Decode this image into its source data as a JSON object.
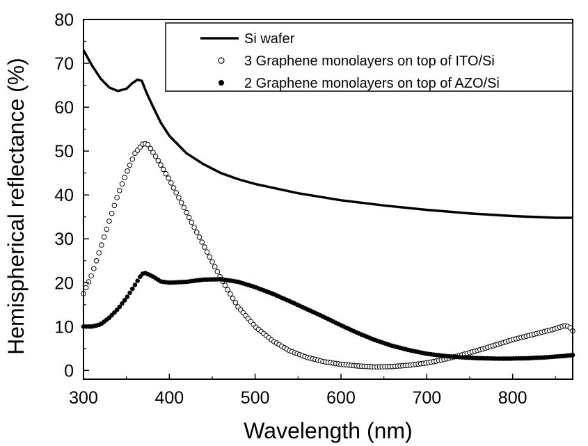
{
  "chart_data": {
    "type": "line",
    "xlabel": "Wavelength (nm)",
    "ylabel": "Hemispherical reflectance (%)",
    "xlim": [
      300,
      870
    ],
    "ylim": [
      -2,
      80
    ],
    "x_ticks": [
      300,
      400,
      500,
      600,
      700,
      800
    ],
    "y_ticks": [
      0,
      10,
      20,
      30,
      40,
      50,
      60,
      70,
      80
    ],
    "legend_position": "top-right",
    "grid": false,
    "series": [
      {
        "name": "Si wafer",
        "marker": "line",
        "color": "#000000",
        "points": [
          [
            300,
            73
          ],
          [
            310,
            69.5
          ],
          [
            320,
            66.5
          ],
          [
            330,
            64.5
          ],
          [
            340,
            63.7
          ],
          [
            350,
            64.2
          ],
          [
            357,
            65.5
          ],
          [
            363,
            66.3
          ],
          [
            368,
            66
          ],
          [
            373,
            63.5
          ],
          [
            380,
            60.5
          ],
          [
            390,
            56.5
          ],
          [
            400,
            53.5
          ],
          [
            420,
            49.5
          ],
          [
            440,
            47
          ],
          [
            460,
            45
          ],
          [
            480,
            43.6
          ],
          [
            500,
            42.5
          ],
          [
            550,
            40.4
          ],
          [
            600,
            38.8
          ],
          [
            650,
            37.6
          ],
          [
            700,
            36.6
          ],
          [
            750,
            35.8
          ],
          [
            800,
            35.2
          ],
          [
            850,
            34.8
          ],
          [
            870,
            34.8
          ]
        ]
      },
      {
        "name": "3 Graphene monolayers on top of ITO/Si",
        "marker": "open-circle",
        "color": "#000000",
        "points": [
          [
            300,
            17.5
          ],
          [
            310,
            22
          ],
          [
            320,
            28
          ],
          [
            330,
            34
          ],
          [
            340,
            40
          ],
          [
            350,
            45
          ],
          [
            360,
            49.5
          ],
          [
            370,
            51.8
          ],
          [
            375,
            51.5
          ],
          [
            385,
            48.5
          ],
          [
            400,
            43.5
          ],
          [
            420,
            36
          ],
          [
            440,
            28.5
          ],
          [
            460,
            21
          ],
          [
            480,
            14.5
          ],
          [
            500,
            10
          ],
          [
            520,
            6.8
          ],
          [
            540,
            4.5
          ],
          [
            560,
            3
          ],
          [
            580,
            2
          ],
          [
            600,
            1.4
          ],
          [
            620,
            1
          ],
          [
            640,
            0.8
          ],
          [
            660,
            0.9
          ],
          [
            680,
            1.2
          ],
          [
            700,
            1.7
          ],
          [
            720,
            2.5
          ],
          [
            740,
            3.5
          ],
          [
            760,
            4.6
          ],
          [
            780,
            5.8
          ],
          [
            800,
            7
          ],
          [
            820,
            8
          ],
          [
            840,
            9
          ],
          [
            850,
            9.5
          ],
          [
            860,
            10.2
          ],
          [
            866,
            10
          ],
          [
            870,
            9
          ]
        ]
      },
      {
        "name": "2 Graphene monolayers on top of AZO/Si",
        "marker": "filled-circle",
        "color": "#000000",
        "points": [
          [
            300,
            10
          ],
          [
            310,
            10
          ],
          [
            320,
            10.5
          ],
          [
            330,
            12
          ],
          [
            340,
            14
          ],
          [
            350,
            16.5
          ],
          [
            360,
            19.5
          ],
          [
            368,
            22
          ],
          [
            372,
            22.2
          ],
          [
            380,
            21.5
          ],
          [
            390,
            20.3
          ],
          [
            400,
            20
          ],
          [
            420,
            20.2
          ],
          [
            440,
            20.7
          ],
          [
            460,
            20.8
          ],
          [
            480,
            20.2
          ],
          [
            500,
            19
          ],
          [
            520,
            17.5
          ],
          [
            540,
            15.8
          ],
          [
            560,
            14
          ],
          [
            580,
            12.2
          ],
          [
            600,
            10.3
          ],
          [
            620,
            8.5
          ],
          [
            640,
            6.9
          ],
          [
            660,
            5.6
          ],
          [
            680,
            4.6
          ],
          [
            700,
            3.8
          ],
          [
            720,
            3.3
          ],
          [
            740,
            3
          ],
          [
            760,
            2.8
          ],
          [
            780,
            2.7
          ],
          [
            800,
            2.7
          ],
          [
            820,
            2.8
          ],
          [
            840,
            3
          ],
          [
            860,
            3.3
          ],
          [
            870,
            3.5
          ]
        ]
      }
    ]
  }
}
